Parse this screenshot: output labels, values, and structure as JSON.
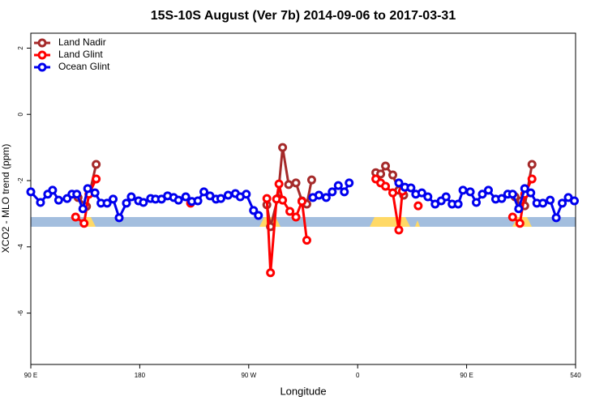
{
  "chart_data": {
    "type": "line",
    "title": "15S-10S August (Ver 7b)   2014-09-06 to 2017-03-31",
    "xlabel": "Longitude",
    "ylabel": "XCO2 - MLO trend (ppm)",
    "xlim": [
      90,
      540
    ],
    "ylim": [
      -7.55,
      2.45
    ],
    "xticks": [
      {
        "value": 90,
        "label": "90 E"
      },
      180,
      {
        "value": 270,
        "label": "90 W"
      },
      {
        "value": 360,
        "label": "0"
      },
      {
        "value": 450,
        "label": "90 E"
      },
      540
    ],
    "yticks": [
      -6,
      -4,
      -2,
      0,
      2
    ],
    "legend": "top-left",
    "series": [
      {
        "name": "Land Nadir",
        "color": "#a52a2a",
        "x": [
          129,
          136,
          144,
          210,
          285,
          288,
          294,
          298,
          303,
          309,
          314,
          318,
          322,
          350,
          375,
          379,
          383,
          389,
          394,
          398,
          450,
          490,
          495,
          498,
          504
        ],
        "values": [
          -2.51,
          -2.78,
          -1.51,
          null,
          -2.73,
          -3.39,
          -2.54,
          -1.0,
          -2.12,
          -2.07,
          -2.61,
          -2.71,
          -1.98,
          null,
          -1.76,
          -1.8,
          -1.56,
          -1.83,
          -2.29,
          -2.44,
          null,
          -2.49,
          -2.61,
          -2.76,
          -1.51
        ]
      },
      {
        "name": "Land Glint",
        "color": "#ff0000",
        "x": [
          127,
          134,
          138,
          144,
          180,
          222,
          260,
          285,
          288,
          293,
          295,
          298,
          304,
          309,
          314,
          318,
          350,
          375,
          379,
          383,
          389,
          394,
          397,
          404,
          410,
          450,
          488,
          494,
          498,
          504
        ],
        "values": [
          -3.1,
          -3.29,
          -2.41,
          -1.95,
          null,
          -2.68,
          null,
          -2.54,
          -4.78,
          -2.56,
          -2.1,
          -2.59,
          -2.93,
          -3.1,
          -2.63,
          -3.8,
          null,
          -1.95,
          -2.07,
          -2.17,
          -2.37,
          -3.49,
          -2.32,
          null,
          -2.76,
          null,
          -3.1,
          -3.29,
          -2.41,
          -1.95
        ]
      },
      {
        "name": "Ocean Glint",
        "color": "#0000ee",
        "x": [
          90,
          98,
          104,
          108,
          113,
          120,
          124,
          128,
          133,
          137,
          143,
          148,
          153,
          158,
          163,
          169,
          173,
          179,
          183,
          189,
          193,
          198,
          203,
          208,
          212,
          218,
          223,
          228,
          233,
          238,
          243,
          247,
          253,
          259,
          263,
          268,
          274,
          278,
          300,
          323,
          328,
          334,
          339,
          344,
          349,
          353,
          375,
          394,
          399,
          404,
          408,
          413,
          418,
          424,
          429,
          433,
          438,
          443,
          447,
          453,
          458,
          463,
          468,
          474,
          479,
          484,
          488,
          493,
          498,
          503,
          508,
          513,
          519,
          524,
          529,
          534,
          539
        ],
        "values": [
          -2.34,
          -2.66,
          -2.41,
          -2.29,
          -2.59,
          -2.54,
          -2.41,
          -2.41,
          -2.85,
          -2.24,
          -2.37,
          -2.68,
          -2.68,
          -2.56,
          -3.12,
          -2.68,
          -2.49,
          -2.61,
          -2.66,
          -2.54,
          -2.56,
          -2.56,
          -2.46,
          -2.51,
          -2.59,
          -2.49,
          -2.63,
          -2.61,
          -2.34,
          -2.46,
          -2.56,
          -2.54,
          -2.44,
          -2.39,
          -2.49,
          -2.41,
          -2.9,
          -3.05,
          null,
          -2.51,
          -2.44,
          -2.51,
          -2.34,
          -2.15,
          -2.34,
          -2.07,
          null,
          -2.07,
          -2.2,
          -2.22,
          -2.41,
          -2.37,
          -2.49,
          -2.71,
          -2.61,
          -2.49,
          -2.71,
          -2.71,
          -2.29,
          -2.34,
          -2.66,
          -2.41,
          -2.29,
          -2.56,
          -2.54,
          -2.41,
          -2.41,
          -2.85,
          -2.24,
          -2.37,
          -2.68,
          -2.68,
          -2.59,
          -3.12,
          -2.68,
          -2.51,
          -2.61
        ]
      }
    ]
  }
}
